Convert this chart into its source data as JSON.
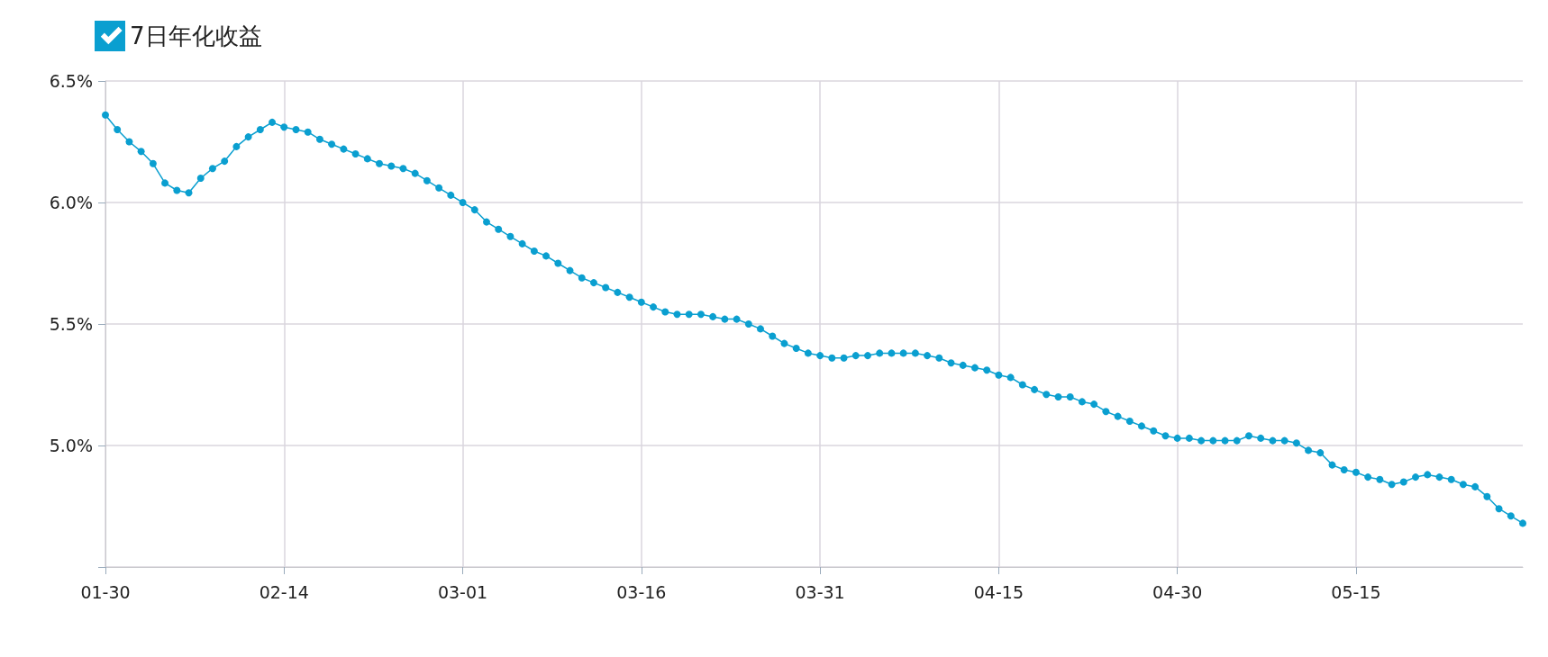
{
  "chart_data": {
    "type": "line",
    "marker": "circle",
    "line_style": "solid",
    "grid": true,
    "legend": "top left",
    "x": [
      "--01-30",
      "--01-31",
      "--02-01",
      "--02-02",
      "--02-03",
      "--02-04",
      "--02-05",
      "--02-06",
      "--02-07",
      "--02-08",
      "--02-09",
      "--02-10",
      "--02-11",
      "--02-12",
      "--02-13",
      "--02-14",
      "--02-15",
      "--02-16",
      "--02-17",
      "--02-18",
      "--02-19",
      "--02-20",
      "--02-21",
      "--02-22",
      "--02-23",
      "--02-24",
      "--02-25",
      "--02-26",
      "--02-27",
      "--02-28",
      "--03-01",
      "--03-02",
      "--03-03",
      "--03-04",
      "--03-05",
      "--03-06",
      "--03-07",
      "--03-08",
      "--03-09",
      "--03-10",
      "--03-11",
      "--03-12",
      "--03-13",
      "--03-14",
      "--03-15",
      "--03-16",
      "--03-17",
      "--03-18",
      "--03-19",
      "--03-20",
      "--03-21",
      "--03-22",
      "--03-23",
      "--03-24",
      "--03-25",
      "--03-26",
      "--03-27",
      "--03-28",
      "--03-29",
      "--03-30",
      "--03-31",
      "--04-01",
      "--04-02",
      "--04-03",
      "--04-04",
      "--04-05",
      "--04-06",
      "--04-07",
      "--04-08",
      "--04-09",
      "--04-10",
      "--04-11",
      "--04-12",
      "--04-13",
      "--04-14",
      "--04-15",
      "--04-16",
      "--04-17",
      "--04-18",
      "--04-19",
      "--04-20",
      "--04-21",
      "--04-22",
      "--04-23",
      "--04-24",
      "--04-25",
      "--04-26",
      "--04-27",
      "--04-28",
      "--04-29",
      "--04-30",
      "--05-01",
      "--05-02",
      "--05-03",
      "--05-04",
      "--05-05",
      "--05-06",
      "--05-07",
      "--05-08",
      "--05-09",
      "--05-10",
      "--05-11",
      "--05-12",
      "--05-13",
      "--05-14",
      "--05-15",
      "--05-16",
      "--05-17",
      "--05-18",
      "--05-19",
      "--05-20",
      "--05-21",
      "--05-22",
      "--05-23",
      "--05-24",
      "--05-25",
      "--05-26",
      "--05-27",
      "--05-28",
      "--05-29"
    ],
    "series": [
      {
        "name": "7日年化收益",
        "color": "#0a9fd0",
        "values": [
          6.36,
          6.3,
          6.25,
          6.21,
          6.16,
          6.08,
          6.05,
          6.04,
          6.1,
          6.14,
          6.17,
          6.23,
          6.27,
          6.3,
          6.33,
          6.31,
          6.3,
          6.29,
          6.26,
          6.24,
          6.22,
          6.2,
          6.18,
          6.16,
          6.15,
          6.14,
          6.12,
          6.09,
          6.06,
          6.03,
          6.0,
          5.97,
          5.92,
          5.89,
          5.86,
          5.83,
          5.8,
          5.78,
          5.75,
          5.72,
          5.69,
          5.67,
          5.65,
          5.63,
          5.61,
          5.59,
          5.57,
          5.55,
          5.54,
          5.54,
          5.54,
          5.53,
          5.52,
          5.52,
          5.5,
          5.48,
          5.45,
          5.42,
          5.4,
          5.38,
          5.37,
          5.36,
          5.36,
          5.37,
          5.37,
          5.38,
          5.38,
          5.38,
          5.38,
          5.37,
          5.36,
          5.34,
          5.33,
          5.32,
          5.31,
          5.29,
          5.28,
          5.25,
          5.23,
          5.21,
          5.2,
          5.2,
          5.18,
          5.17,
          5.14,
          5.12,
          5.1,
          5.08,
          5.06,
          5.04,
          5.03,
          5.03,
          5.02,
          5.02,
          5.02,
          5.02,
          5.04,
          5.03,
          5.02,
          5.02,
          5.01,
          4.98,
          4.97,
          4.92,
          4.9,
          4.89,
          4.87,
          4.86,
          4.84,
          4.85,
          4.87,
          4.88,
          4.87,
          4.86,
          4.84,
          4.83,
          4.79,
          4.74,
          4.71,
          4.68
        ]
      }
    ],
    "xlim": [
      "--01-30",
      "--05-29"
    ],
    "xticks": [
      {
        "value": "--01-30",
        "label": "01-30"
      },
      {
        "value": "--02-14",
        "label": "02-14"
      },
      {
        "value": "--03-01",
        "label": "03-01"
      },
      {
        "value": "--03-16",
        "label": "03-16"
      },
      {
        "value": "--03-31",
        "label": "03-31"
      },
      {
        "value": "--04-15",
        "label": "04-15"
      },
      {
        "value": "--04-30",
        "label": "04-30"
      },
      {
        "value": "--05-15",
        "label": "05-15"
      }
    ],
    "ylim": [
      4.5,
      6.5
    ],
    "yticks": [
      {
        "value": 4.5,
        "label": null
      },
      {
        "value": 5.0,
        "label": "5.0%"
      },
      {
        "value": 5.5,
        "label": "5.5%"
      },
      {
        "value": 6.0,
        "label": "6.0%"
      },
      {
        "value": 6.5,
        "label": "6.5%"
      }
    ]
  }
}
